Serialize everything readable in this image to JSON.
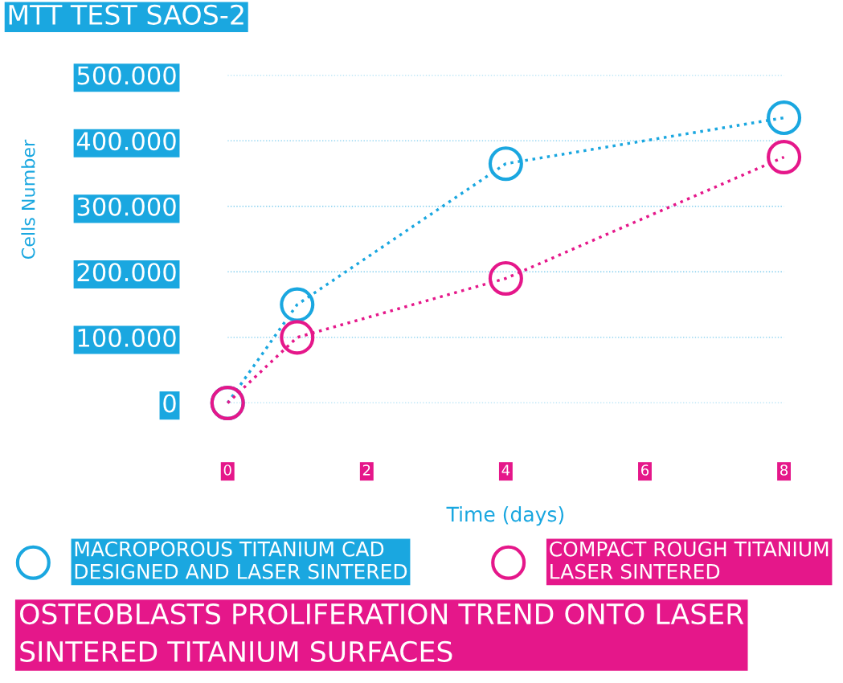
{
  "chart_data": {
    "type": "line",
    "title": "MTT TEST SAOS-2",
    "xlabel": "Time (days)",
    "ylabel": "Cells Number",
    "x": [
      0,
      1,
      4,
      8
    ],
    "series": [
      {
        "name": "MACROPOROUS TITANIUM CAD\nDESIGNED AND LASER SINTERED",
        "color": "#1aa7e0",
        "values": [
          0,
          150000,
          365000,
          435000
        ]
      },
      {
        "name": "COMPACT ROUGH TITANIUM\nLASER SINTERED",
        "color": "#e5178a",
        "values": [
          0,
          100000,
          190000,
          375000
        ]
      }
    ],
    "xlim": [
      0,
      8
    ],
    "xticks": [
      0,
      2,
      4,
      6,
      8
    ],
    "ylim": [
      0,
      500000
    ],
    "yticks": [
      {
        "value": 0,
        "label": "0"
      },
      {
        "value": 100000,
        "label": "100.000"
      },
      {
        "value": 200000,
        "label": "200.000"
      },
      {
        "value": 300000,
        "label": "300.000"
      },
      {
        "value": 400000,
        "label": "400.000"
      },
      {
        "value": 500000,
        "label": "500.000"
      }
    ],
    "grid": "y",
    "legend": "bottom",
    "marker": "circle",
    "line_style": "dotted",
    "annotations": [
      "OSTEOBLASTS PROLIFERATION TREND ONTO LASER\nSINTERED TITANIUM SURFACES"
    ]
  }
}
